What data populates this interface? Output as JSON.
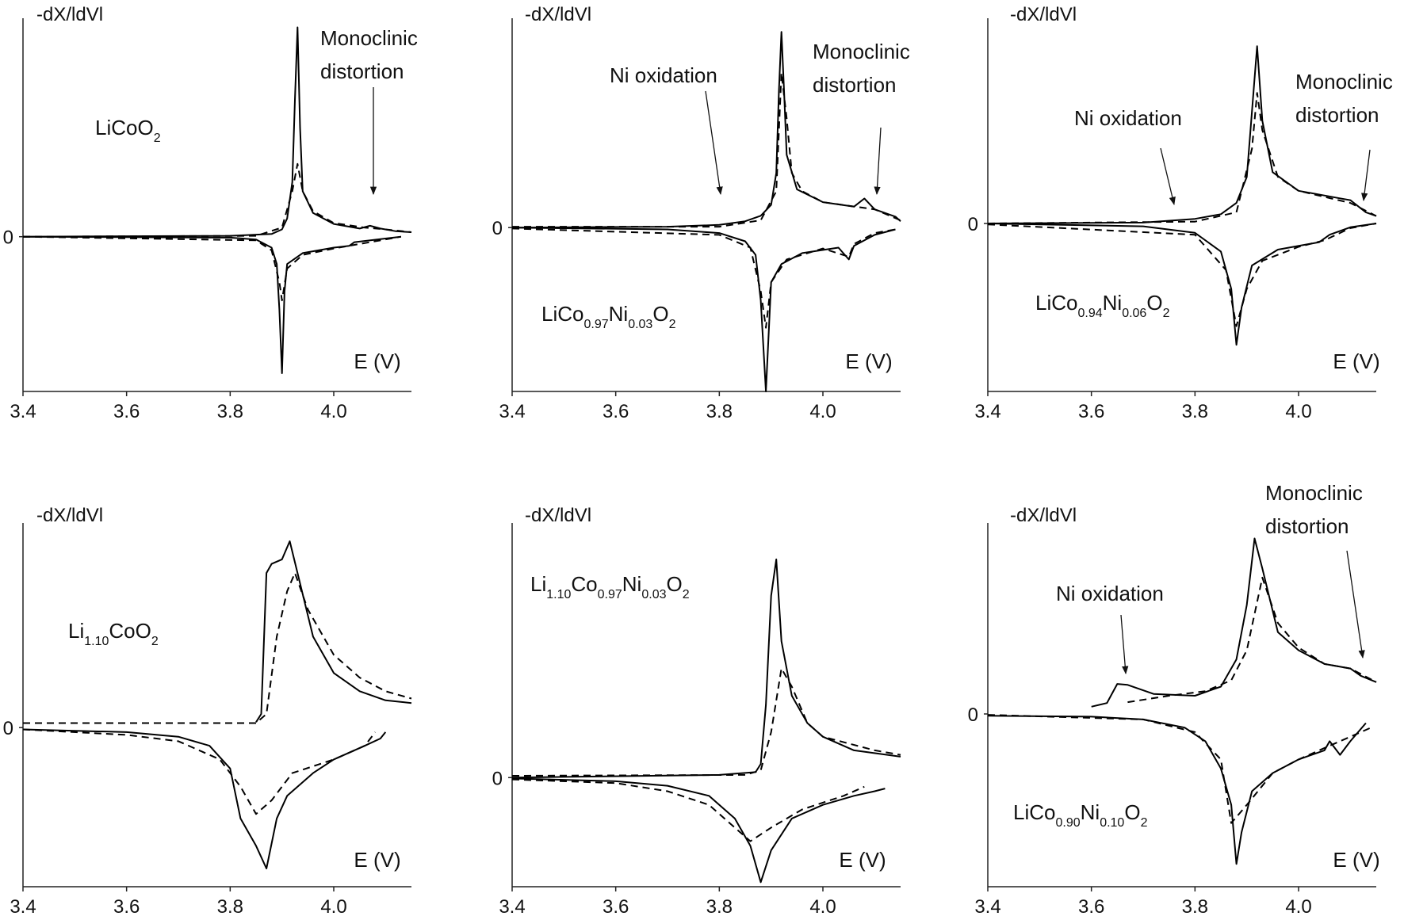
{
  "chart_data": [
    {
      "type": "line",
      "y_label": "-dX/ldVl",
      "x_label": "E (V)",
      "compound": [
        {
          "text": "LiCoO"
        },
        {
          "sub": "2"
        }
      ],
      "annotations": [
        {
          "lines": [
            "Monoclinic",
            "distortion"
          ]
        }
      ],
      "xlim": [
        3.4,
        4.15
      ],
      "xticks": [
        3.4,
        3.6,
        3.8,
        {
          "value": 4,
          "label": "4.0"
        }
      ],
      "ylim": [
        -17,
        24
      ],
      "yticks": [
        0
      ],
      "series": [
        {
          "color": "#000",
          "style": "solid",
          "x": [
            3.4,
            3.8,
            3.88,
            3.9,
            3.91,
            3.92,
            3.925,
            3.93,
            3.935,
            3.94,
            3.96,
            4.0,
            4.05,
            4.07,
            4.09,
            4.12,
            4.15
          ],
          "values": [
            0,
            0.1,
            0.3,
            0.8,
            2,
            6,
            15,
            23,
            12,
            5,
            2.6,
            1.4,
            0.9,
            1.2,
            0.9,
            0.6,
            0.5
          ]
        },
        {
          "color": "#000",
          "style": "dashed",
          "x": [
            3.4,
            3.85,
            3.9,
            3.92,
            3.93,
            3.94,
            3.96,
            4.0,
            4.06,
            4.1,
            4.15
          ],
          "values": [
            0,
            0.1,
            1,
            5,
            8,
            5,
            2.8,
            1.5,
            1,
            0.8,
            0.5
          ]
        },
        {
          "color": "#000",
          "style": "solid",
          "x": [
            3.4,
            3.8,
            3.85,
            3.88,
            3.89,
            3.895,
            3.9,
            3.905,
            3.91,
            3.94,
            4.0,
            4.03,
            4.04,
            4.1,
            4.13
          ],
          "values": [
            0,
            -0.1,
            -0.3,
            -1.2,
            -3,
            -8,
            -15,
            -6,
            -3,
            -1.8,
            -1.2,
            -1,
            -0.6,
            -0.2,
            0
          ]
        },
        {
          "color": "#000",
          "style": "dashed",
          "x": [
            3.4,
            3.85,
            3.88,
            3.895,
            3.9,
            3.91,
            3.94,
            4.0,
            4.04,
            4.1,
            4.13
          ],
          "values": [
            0,
            -0.4,
            -1.5,
            -5,
            -7,
            -3.5,
            -2,
            -1.3,
            -0.9,
            -0.3,
            0
          ]
        }
      ]
    },
    {
      "type": "line",
      "y_label": "-dX/ldVl",
      "x_label": "E (V)",
      "compound": [
        {
          "text": "LiCo"
        },
        {
          "sub": "0.97"
        },
        {
          "text": "Ni"
        },
        {
          "sub": "0.03"
        },
        {
          "text": "O"
        },
        {
          "sub": "2"
        }
      ],
      "annotations": [
        {
          "lines": [
            "Ni oxidation"
          ]
        },
        {
          "lines": [
            "Monoclinic",
            "distortion"
          ]
        }
      ],
      "xlim": [
        3.4,
        4.15
      ],
      "xticks": [
        3.4,
        3.6,
        3.8,
        {
          "value": 4,
          "label": "4.0"
        }
      ],
      "ylim": [
        -18,
        23
      ],
      "yticks": [
        0
      ],
      "series": [
        {
          "color": "#000",
          "style": "solid",
          "x": [
            3.4,
            3.7,
            3.8,
            3.85,
            3.88,
            3.9,
            3.91,
            3.915,
            3.92,
            3.925,
            3.93,
            3.95,
            4.0,
            4.06,
            4.08,
            4.1,
            4.14,
            4.15
          ],
          "values": [
            0,
            0.1,
            0.3,
            0.7,
            1.3,
            2.5,
            6,
            15,
            21.5,
            15,
            8,
            4.2,
            2.8,
            2.3,
            3.2,
            2,
            1.2,
            0.7
          ]
        },
        {
          "color": "#000",
          "style": "dashed",
          "x": [
            3.4,
            3.8,
            3.88,
            3.91,
            3.92,
            3.93,
            3.94,
            3.96,
            4.0,
            4.1,
            4.15
          ],
          "values": [
            0.1,
            0.1,
            0.8,
            4,
            17,
            12,
            6,
            4,
            2.8,
            2,
            0.8
          ]
        },
        {
          "color": "#000",
          "style": "solid",
          "x": [
            3.4,
            3.7,
            3.8,
            3.85,
            3.87,
            3.88,
            3.89,
            3.9,
            3.92,
            3.96,
            4.03,
            4.05,
            4.06,
            4.1,
            4.14
          ],
          "values": [
            0,
            -0.2,
            -0.6,
            -1.5,
            -3,
            -8,
            -18,
            -6,
            -4,
            -2.8,
            -2.2,
            -3.5,
            -2,
            -0.8,
            -0.2
          ]
        },
        {
          "color": "#000",
          "style": "dashed",
          "x": [
            3.4,
            3.8,
            3.86,
            3.88,
            3.89,
            3.9,
            3.93,
            4.0,
            4.05,
            4.06,
            4.1,
            4.14
          ],
          "values": [
            -0.1,
            -0.8,
            -2.2,
            -7,
            -11,
            -6,
            -3.5,
            -2.3,
            -3.2,
            -1.8,
            -0.6,
            -0.2
          ]
        }
      ]
    },
    {
      "type": "line",
      "y_label": "-dX/ldVl",
      "x_label": "E (V)",
      "compound": [
        {
          "text": "LiCo"
        },
        {
          "sub": "0.94"
        },
        {
          "text": "Ni"
        },
        {
          "sub": "0.06"
        },
        {
          "text": "O"
        },
        {
          "sub": "2"
        }
      ],
      "annotations": [
        {
          "lines": [
            "Ni oxidation"
          ]
        },
        {
          "lines": [
            "Monoclinic",
            "distortion"
          ]
        }
      ],
      "xlim": [
        3.4,
        4.15
      ],
      "xticks": [
        3.4,
        3.6,
        3.8,
        {
          "value": 4,
          "label": "4.0"
        }
      ],
      "ylim": [
        -18,
        22
      ],
      "yticks": [
        0
      ],
      "series": [
        {
          "color": "#000",
          "style": "solid",
          "x": [
            3.4,
            3.7,
            3.8,
            3.85,
            3.88,
            3.9,
            3.91,
            3.92,
            3.93,
            3.95,
            4.0,
            4.08,
            4.1,
            4.13,
            4.15
          ],
          "values": [
            0,
            0.1,
            0.5,
            1,
            2.2,
            5,
            12,
            19,
            11,
            5.5,
            3.5,
            2.7,
            2.5,
            1.2,
            0.8
          ]
        },
        {
          "color": "#000",
          "style": "dashed",
          "x": [
            3.4,
            3.8,
            3.88,
            3.91,
            3.92,
            3.93,
            3.96,
            4.0,
            4.1,
            4.15
          ],
          "values": [
            0,
            0.2,
            1.2,
            8,
            14,
            10,
            5,
            3.5,
            2.2,
            0.8
          ]
        },
        {
          "color": "#000",
          "style": "solid",
          "x": [
            3.4,
            3.7,
            3.8,
            3.85,
            3.87,
            3.88,
            3.89,
            3.91,
            3.96,
            4.04,
            4.06,
            4.1,
            4.15
          ],
          "values": [
            0,
            -0.3,
            -1,
            -3,
            -7,
            -13,
            -9,
            -4.5,
            -2.8,
            -2,
            -1.2,
            -0.4,
            0
          ]
        },
        {
          "color": "#000",
          "style": "dashed",
          "x": [
            3.4,
            3.8,
            3.86,
            3.88,
            3.9,
            3.93,
            4.0,
            4.05,
            4.1,
            4.15
          ],
          "values": [
            -0.1,
            -1.2,
            -5,
            -11,
            -7,
            -4,
            -2.5,
            -1.8,
            -0.5,
            0
          ]
        }
      ]
    },
    {
      "type": "line",
      "y_label": "-dX/ldVl",
      "x_label": "E (V)",
      "compound": [
        {
          "text": "Li"
        },
        {
          "sub": "1.10"
        },
        {
          "text": "CoO"
        },
        {
          "sub": "2"
        }
      ],
      "annotations": [],
      "xlim": [
        3.4,
        4.15
      ],
      "xticks": [
        3.4,
        3.6,
        3.8,
        {
          "value": 4,
          "label": "4.0"
        }
      ],
      "ylim": [
        -17.5,
        22.5
      ],
      "yticks": [
        0
      ],
      "series": [
        {
          "color": "#000",
          "style": "solid",
          "x": [
            3.85,
            3.86,
            3.87,
            3.88,
            3.9,
            3.915,
            3.93,
            3.96,
            4.0,
            4.05,
            4.1,
            4.15
          ],
          "values": [
            0.6,
            1.5,
            17,
            18,
            18.5,
            20.5,
            17,
            10,
            6,
            4,
            3,
            2.7
          ]
        },
        {
          "color": "#000",
          "style": "dashed",
          "x": [
            3.4,
            3.85,
            3.87,
            3.89,
            3.91,
            3.925,
            3.95,
            4.0,
            4.05,
            4.1,
            4.15
          ],
          "values": [
            0.5,
            0.5,
            1.5,
            10,
            15,
            17,
            13,
            8,
            5.5,
            4,
            3.2
          ]
        },
        {
          "color": "#000",
          "style": "solid",
          "x": [
            3.4,
            3.6,
            3.7,
            3.76,
            3.8,
            3.82,
            3.85,
            3.87,
            3.89,
            3.91,
            3.96,
            4.0,
            4.06,
            4.09,
            4.1
          ],
          "values": [
            -0.2,
            -0.5,
            -1,
            -2,
            -4.5,
            -10,
            -13,
            -15.5,
            -10,
            -7.5,
            -5,
            -3.5,
            -2,
            -1.2,
            -0.5
          ]
        },
        {
          "color": "#000",
          "style": "dashed",
          "x": [
            3.4,
            3.6,
            3.7,
            3.78,
            3.82,
            3.85,
            3.88,
            3.92,
            4.0,
            4.06,
            4.08
          ],
          "values": [
            -0.2,
            -0.8,
            -1.5,
            -3.5,
            -6.5,
            -9.5,
            -8,
            -5,
            -3.5,
            -2,
            -0.5
          ]
        }
      ]
    },
    {
      "type": "line",
      "y_label": "-dX/ldVl",
      "x_label": "E (V)",
      "compound": [
        {
          "text": "Li"
        },
        {
          "sub": "1.10"
        },
        {
          "text": "Co"
        },
        {
          "sub": "0.97"
        },
        {
          "text": "Ni"
        },
        {
          "sub": "0.03"
        },
        {
          "text": "O"
        },
        {
          "sub": "2"
        }
      ],
      "annotations": [],
      "xlim": [
        3.4,
        4.15
      ],
      "xticks": [
        3.4,
        3.6,
        3.8,
        {
          "value": 4,
          "label": "4.0"
        }
      ],
      "ylim": [
        -12,
        28
      ],
      "yticks": [
        0
      ],
      "series": [
        {
          "color": "#000",
          "style": "solid",
          "x": [
            3.4,
            3.8,
            3.87,
            3.88,
            3.89,
            3.9,
            3.91,
            3.92,
            3.94,
            3.97,
            4.0,
            4.06,
            4.15
          ],
          "values": [
            0,
            0.3,
            0.6,
            1.5,
            8,
            20,
            24,
            15,
            9,
            6,
            4.5,
            3,
            2.3
          ]
        },
        {
          "color": "#000",
          "style": "dashed",
          "x": [
            3.4,
            3.85,
            3.88,
            3.9,
            3.92,
            3.94,
            3.97,
            4.0,
            4.1,
            4.15
          ],
          "values": [
            0.2,
            0.3,
            0.8,
            5,
            12,
            10,
            6,
            4.5,
            3,
            2.5
          ]
        },
        {
          "color": "#000",
          "style": "solid",
          "x": [
            3.4,
            3.6,
            3.7,
            3.78,
            3.83,
            3.86,
            3.88,
            3.9,
            3.94,
            4.0,
            4.06,
            4.1,
            4.12
          ],
          "values": [
            -0.1,
            -0.4,
            -0.9,
            -2,
            -4.5,
            -7.5,
            -11.5,
            -8,
            -4.5,
            -3,
            -2,
            -1.5,
            -1.2
          ]
        },
        {
          "color": "#000",
          "style": "dashed",
          "x": [
            3.4,
            3.6,
            3.7,
            3.78,
            3.82,
            3.86,
            3.9,
            3.96,
            4.04,
            4.08
          ],
          "values": [
            -0.2,
            -0.6,
            -1.5,
            -3,
            -5,
            -7,
            -5.5,
            -3.5,
            -2,
            -1
          ]
        }
      ]
    },
    {
      "type": "line",
      "y_label": "-dX/ldVl",
      "x_label": "E (V)",
      "compound": [
        {
          "text": "LiCo"
        },
        {
          "sub": "0.90"
        },
        {
          "text": "Ni"
        },
        {
          "sub": "0.10"
        },
        {
          "text": "O"
        },
        {
          "sub": "2"
        }
      ],
      "annotations": [
        {
          "lines": [
            "Ni oxidation"
          ]
        },
        {
          "lines": [
            "Monoclinic",
            "distortion"
          ]
        }
      ],
      "xlim": [
        3.4,
        4.15
      ],
      "xticks": [
        3.4,
        3.6,
        3.8,
        {
          "value": 4,
          "label": "4.0"
        }
      ],
      "ylim": [
        -19,
        21
      ],
      "yticks": [
        0
      ],
      "series": [
        {
          "color": "#000",
          "style": "solid",
          "x": [
            3.6,
            3.63,
            3.65,
            3.67,
            3.72,
            3.8,
            3.85,
            3.88,
            3.9,
            3.915,
            3.93,
            3.96,
            4.0,
            4.05,
            4.1,
            4.12,
            4.15
          ],
          "values": [
            0.8,
            1.2,
            3.3,
            3.2,
            2.2,
            2,
            3,
            6,
            12,
            19.3,
            16,
            9,
            7,
            5.5,
            5,
            4.2,
            3.5
          ]
        },
        {
          "color": "#000",
          "style": "dashed",
          "x": [
            3.67,
            3.75,
            3.82,
            3.87,
            3.9,
            3.93,
            3.96,
            4.0,
            4.05,
            4.1,
            4.15
          ],
          "values": [
            1.3,
            2,
            2.5,
            3.7,
            7,
            15,
            10,
            7.3,
            5.5,
            5,
            3.5
          ]
        },
        {
          "color": "#000",
          "style": "solid",
          "x": [
            3.4,
            3.6,
            3.7,
            3.78,
            3.82,
            3.85,
            3.87,
            3.88,
            3.89,
            3.91,
            3.95,
            4.0,
            4.05,
            4.06,
            4.08,
            4.1,
            4.13
          ],
          "values": [
            -0.2,
            -0.3,
            -0.6,
            -1.5,
            -3,
            -6,
            -10,
            -16.5,
            -13,
            -8.5,
            -6.5,
            -5,
            -4,
            -3,
            -4.5,
            -3,
            -1
          ]
        },
        {
          "color": "#000",
          "style": "dashed",
          "x": [
            3.4,
            3.7,
            3.8,
            3.85,
            3.87,
            3.9,
            3.95,
            4.0,
            4.06,
            4.1,
            4.14
          ],
          "values": [
            -0.1,
            -0.6,
            -2,
            -5,
            -12,
            -10,
            -6.5,
            -5,
            -3.5,
            -2.5,
            -1.5
          ]
        }
      ]
    }
  ]
}
